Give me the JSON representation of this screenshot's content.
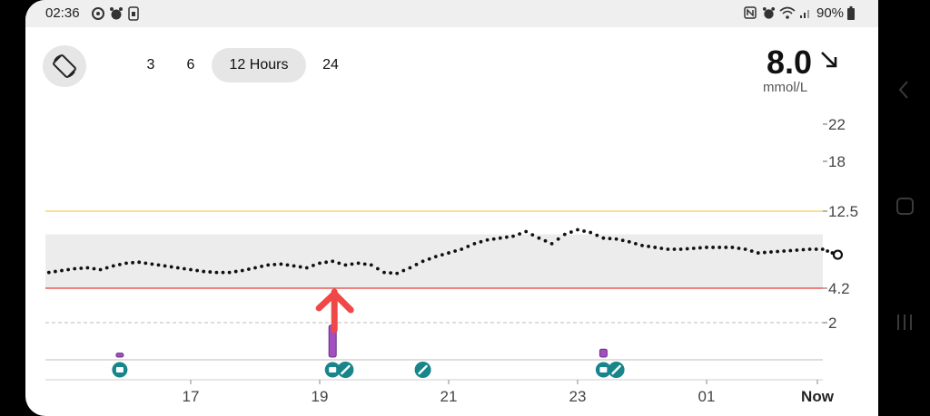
{
  "status_bar": {
    "time": "02:36",
    "left_icons": [
      "settings-circle-icon",
      "alarm-icon",
      "sim-card-icon"
    ],
    "right_icons": [
      "nfc-icon",
      "alarm-icon",
      "wifi-icon",
      "signal-icon"
    ],
    "battery": "90%"
  },
  "header": {
    "rotate_icon": "screen-rotate-icon",
    "ranges": [
      {
        "label": "3",
        "selected": false
      },
      {
        "label": "6",
        "selected": false
      },
      {
        "label": "12 Hours",
        "selected": true
      },
      {
        "label": "24",
        "selected": false
      }
    ],
    "current_value": "8.0",
    "trend": "down-right",
    "unit": "mmol/L"
  },
  "chart_data": {
    "type": "scatter",
    "xlabel": "",
    "ylabel": "",
    "x_ticks": [
      "17",
      "19",
      "21",
      "23",
      "01",
      "Now"
    ],
    "y_ticks": [
      "22",
      "18",
      "12.5",
      "4.2",
      "2"
    ],
    "target_range": [
      4.2,
      10.0
    ],
    "high_line": 12.5,
    "low_line": 4.2,
    "urgent_low": 2,
    "colors": {
      "high": "#f2c230",
      "low": "#e53935",
      "points": "#111111",
      "target_band": "#ececec",
      "marker": "#17858a",
      "bar": "#a24fc0"
    },
    "series": [
      {
        "x": [
          14.8,
          15.0,
          15.2,
          15.4,
          15.6,
          15.8,
          16.0,
          16.2,
          16.4,
          16.6,
          16.8,
          17.0,
          17.2,
          17.4,
          17.6,
          17.8,
          18.0,
          18.2,
          18.4,
          18.6,
          18.8,
          19.0,
          19.2,
          19.4,
          19.6,
          19.8,
          20.0,
          20.2,
          20.4,
          20.6,
          20.8,
          21.0,
          21.2,
          21.4,
          21.6,
          21.8,
          22.0,
          22.2,
          22.4,
          22.6,
          22.8,
          23.0,
          23.2,
          23.4,
          23.6,
          23.8,
          24.0,
          24.2,
          24.4,
          24.6,
          24.8,
          25.0,
          25.2,
          25.4,
          25.6,
          25.8,
          26.0,
          26.2,
          26.4,
          26.6,
          26.8,
          26.95
        ],
        "y": [
          5.9,
          6.1,
          6.3,
          6.4,
          6.2,
          6.6,
          6.9,
          7.0,
          6.8,
          6.6,
          6.4,
          6.2,
          6.0,
          5.9,
          5.9,
          6.1,
          6.4,
          6.7,
          6.8,
          6.6,
          6.4,
          6.9,
          7.1,
          6.7,
          6.9,
          6.7,
          5.9,
          5.8,
          6.4,
          7.1,
          7.6,
          8.0,
          8.4,
          9.0,
          9.4,
          9.6,
          9.8,
          10.3,
          9.6,
          9.0,
          10.0,
          10.5,
          10.2,
          9.6,
          9.5,
          9.2,
          8.8,
          8.6,
          8.4,
          8.4,
          8.5,
          8.6,
          8.6,
          8.6,
          8.4,
          8.0,
          8.1,
          8.2,
          8.3,
          8.4,
          8.4,
          8.0
        ]
      }
    ],
    "event_bars": [
      {
        "x": 15.9,
        "value": 1,
        "marker": "meal-icon"
      },
      {
        "x": 19.2,
        "value": 8,
        "marker": "meal-icon"
      },
      {
        "x": 23.4,
        "value": 2,
        "marker": "meal-icon"
      }
    ],
    "insulin_markers": [
      {
        "x": 19.4,
        "marker": "pen-icon"
      },
      {
        "x": 20.6,
        "marker": "pen-icon"
      },
      {
        "x": 23.6,
        "marker": "pen-icon"
      }
    ],
    "annotation": {
      "type": "arrow",
      "x": 19.2,
      "y": 4.2,
      "color": "#f04747"
    }
  },
  "nav_bar": {
    "icons": [
      "back-icon",
      "home-icon",
      "recent-apps-icon"
    ]
  }
}
